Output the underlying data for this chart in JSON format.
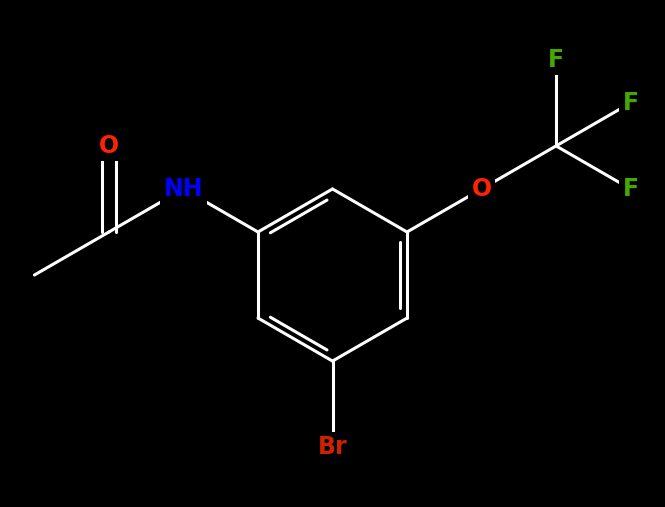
{
  "background_color": "#000000",
  "bond_color": "#ffffff",
  "line_width": 2.2,
  "font_size": 17,
  "label_colors": {
    "N": "#0000ff",
    "O_amide": "#ff2200",
    "O_ether": "#ff2200",
    "F1": "#44aa00",
    "F2": "#44aa00",
    "F3": "#44aa00",
    "Br": "#cc2200"
  },
  "label_texts": {
    "N": "NH",
    "O_amide": "O",
    "O_ether": "O",
    "F1": "F",
    "F2": "F",
    "F3": "F",
    "Br": "Br"
  }
}
